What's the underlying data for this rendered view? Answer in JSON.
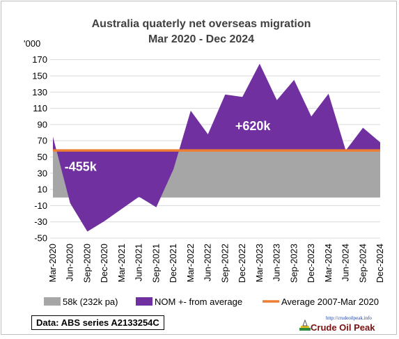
{
  "chart_data": {
    "type": "area",
    "title": "Australia quaterly net overseas migration",
    "subtitle": "Mar 2020 - Dec 2024",
    "ylabel": "'000",
    "ylim": [
      -50,
      180
    ],
    "yticks": [
      -50,
      -30,
      -10,
      10,
      30,
      50,
      70,
      90,
      110,
      130,
      150,
      170
    ],
    "grid": true,
    "legend_position": "bottom",
    "categories": [
      "Mar-2020",
      "Jun-2020",
      "Sep-2020",
      "Dec-2020",
      "Mar-2021",
      "Jun-2021",
      "Sep-2021",
      "Dec-2021",
      "Mar-2022",
      "Jun-2022",
      "Sep-2022",
      "Dec-2022",
      "Mar-2023",
      "Jun-2023",
      "Sep-2023",
      "Dec-2023",
      "Mar-2024",
      "Jun-2024",
      "Sep-2024",
      "Dec-2024"
    ],
    "series": [
      {
        "name": "58k (232k pa)",
        "kind": "area",
        "color": "#a6a6a6",
        "values": [
          58,
          58,
          58,
          58,
          58,
          58,
          58,
          58,
          58,
          58,
          58,
          58,
          58,
          58,
          58,
          58,
          58,
          58,
          58,
          58
        ]
      },
      {
        "name": "NOM +- from average",
        "kind": "area",
        "color": "#7030a0",
        "values": [
          75,
          -7,
          -42,
          -29,
          -14,
          1,
          -12,
          35,
          107,
          78,
          127,
          124,
          165,
          120,
          145,
          100,
          128,
          58,
          86,
          68
        ]
      },
      {
        "name": "Average 2007-Mar 2020",
        "kind": "line",
        "color": "#ed7d31",
        "values": [
          58,
          58,
          58,
          58,
          58,
          58,
          58,
          58,
          58,
          58,
          58,
          58,
          58,
          58,
          58,
          58,
          58,
          58,
          58,
          58
        ]
      }
    ],
    "annotations": [
      {
        "text": "-455k",
        "x": "Jun-2020",
        "y": 38,
        "color": "#ffffff"
      },
      {
        "text": "+620k",
        "x": "Dec-2022",
        "y": 88,
        "color": "#ffffff"
      }
    ],
    "source": "Data: ABS series A2133254C"
  },
  "logo": {
    "url": "http://crudeoilpeak.info",
    "name": "Crude Oil Peak"
  }
}
